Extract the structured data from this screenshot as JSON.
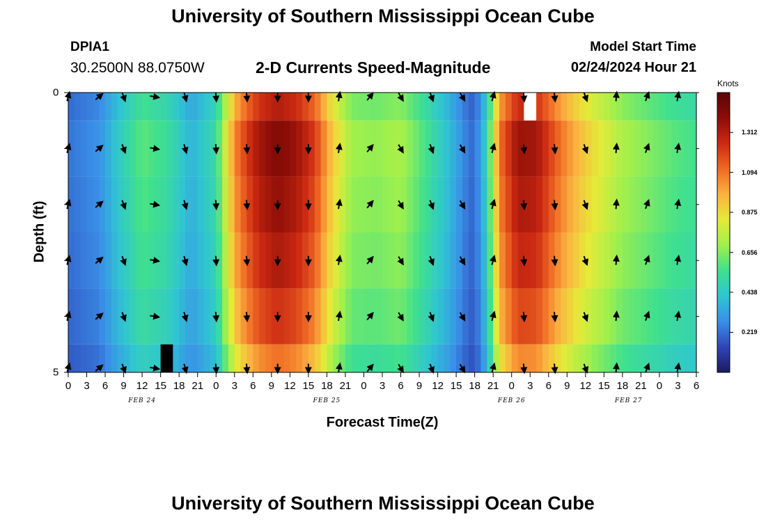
{
  "header": {
    "title": "University of Southern Mississippi Ocean Cube",
    "station": "DPIA1",
    "coords": "30.2500N  88.0750W",
    "subtitle": "2-D Currents Speed-Magnitude",
    "model_label": "Model Start Time",
    "model_time": "02/24/2024 Hour 21"
  },
  "footer": {
    "title": "University of Southern Mississippi Ocean Cube"
  },
  "chart_data": {
    "type": "heatmap",
    "title": "2-D Currents Speed-Magnitude",
    "xlabel": "Forecast Time(Z)",
    "ylabel": "Depth (ft)",
    "x_hours": [
      0,
      3,
      6,
      9,
      12,
      15,
      18,
      21,
      24,
      27,
      30,
      33,
      36,
      39,
      42,
      45,
      48,
      51,
      54,
      57,
      60,
      63,
      66,
      69,
      72,
      75,
      78,
      81,
      84,
      87,
      90
    ],
    "x_tick_labels": [
      "0",
      "3",
      "6",
      "9",
      "12",
      "15",
      "18",
      "21",
      "0",
      "3",
      "6",
      "9",
      "12",
      "15",
      "18",
      "21",
      "0",
      "3",
      "6",
      "9",
      "12",
      "15",
      "18",
      "21",
      "0",
      "3",
      "6",
      "9",
      "12",
      "15",
      "18",
      "21",
      "0",
      "3",
      "6"
    ],
    "x_tick_hours": [
      0,
      3,
      6,
      9,
      12,
      15,
      18,
      21,
      24,
      27,
      30,
      33,
      36,
      39,
      42,
      45,
      48,
      51,
      54,
      57,
      60,
      63,
      66,
      69,
      72,
      75,
      78,
      81,
      84,
      87,
      90,
      93,
      96,
      99,
      102
    ],
    "x_range": [
      0,
      102
    ],
    "date_labels": [
      {
        "text": "FEB 24",
        "hour": 12
      },
      {
        "text": "FEB 25",
        "hour": 42
      },
      {
        "text": "FEB 26",
        "hour": 72
      },
      {
        "text": "FEB 27",
        "hour": 91
      }
    ],
    "y_range": [
      0,
      5
    ],
    "y_tick_labels": [
      {
        "text": "0",
        "depth": 0
      },
      {
        "text": "5",
        "depth": 5
      }
    ],
    "y_minor_ticks": [
      1,
      2,
      3,
      4
    ],
    "depth_rows": [
      0,
      1,
      2,
      3,
      4,
      5
    ],
    "speed_profile": {
      "hours": [
        0,
        5,
        8,
        12,
        16,
        20,
        24,
        27,
        29,
        31,
        34,
        37,
        40,
        43,
        46,
        50,
        54,
        58,
        62,
        65,
        66,
        68,
        70,
        73,
        76,
        80,
        83,
        86,
        90,
        94,
        98,
        102
      ],
      "values": [
        0.22,
        0.28,
        0.42,
        0.58,
        0.52,
        0.36,
        0.5,
        1.02,
        1.18,
        1.3,
        1.38,
        1.32,
        1.18,
        0.88,
        0.68,
        0.66,
        0.7,
        0.55,
        0.38,
        0.22,
        0.2,
        0.46,
        1.06,
        1.32,
        1.3,
        1.06,
        0.92,
        0.82,
        0.7,
        0.64,
        0.58,
        0.54
      ]
    },
    "depth_factors": [
      0.95,
      1.03,
      1.0,
      0.96,
      0.9,
      0.8
    ],
    "missing_cells": [
      {
        "hour": 16,
        "row": 5,
        "kind": "dark"
      },
      {
        "hour": 75,
        "row": 0,
        "kind": "blank"
      }
    ],
    "colorbar": {
      "unit": "Knots",
      "min": 0.0,
      "max": 1.53,
      "tick_labels": [
        "1.312",
        "1.094",
        "0.875",
        "0.656",
        "0.438",
        "0.219"
      ],
      "tick_values": [
        1.312,
        1.094,
        0.875,
        0.656,
        0.438,
        0.219
      ],
      "colors": [
        "#1a1a60",
        "#2f46b8",
        "#3a8fe8",
        "#2fc5d2",
        "#3fe08e",
        "#9ff04c",
        "#e6ea38",
        "#fbb240",
        "#ef6a24",
        "#cc2a12",
        "#8c0d07",
        "#5a0505"
      ]
    },
    "arrows": {
      "hours": [
        0,
        5,
        9,
        14,
        19,
        24,
        29,
        34,
        39,
        44,
        49,
        54,
        59,
        64,
        69,
        74,
        79,
        84,
        89,
        94,
        99
      ],
      "direction_deg_by_hour": {
        "0": 15,
        "5": 50,
        "9": 160,
        "14": 100,
        "19": 165,
        "24": 175,
        "29": 175,
        "34": 180,
        "39": 180,
        "44": 10,
        "49": 40,
        "54": 150,
        "59": 160,
        "64": 150,
        "69": 15,
        "74": 175,
        "79": 175,
        "84": 160,
        "89": 5,
        "94": 20,
        "99": 10
      }
    }
  }
}
